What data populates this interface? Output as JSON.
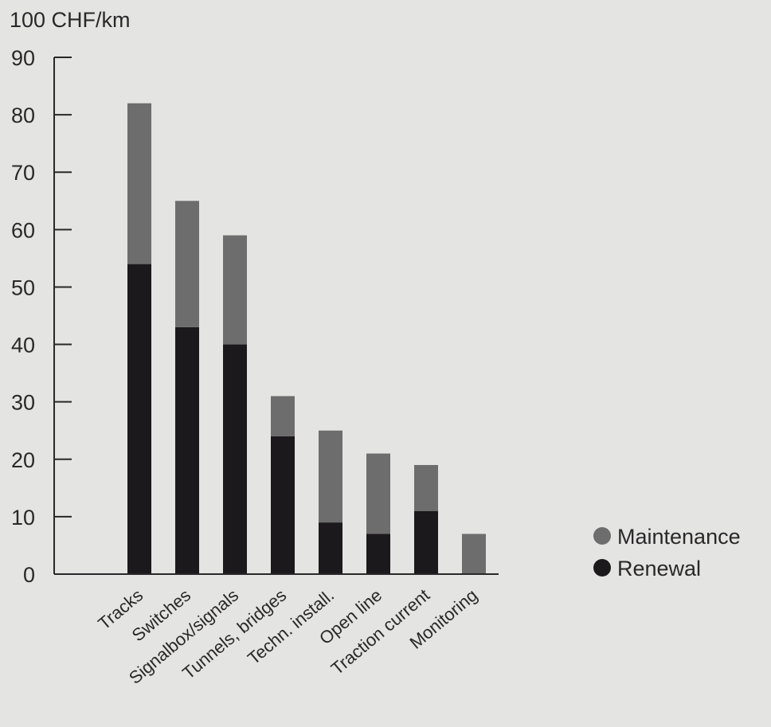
{
  "chart_data": {
    "type": "bar",
    "stacked": true,
    "ylabel": "100 CHF/km",
    "ylim": [
      0,
      90
    ],
    "yticks": [
      0,
      10,
      20,
      30,
      40,
      50,
      60,
      70,
      80,
      90
    ],
    "categories": [
      "Tracks",
      "Switches",
      "Signalbox/signals",
      "Tunnels, bridges",
      "Techn. install.",
      "Open line",
      "Traction current",
      "Monitoring"
    ],
    "series": [
      {
        "name": "Renewal",
        "color": "#1c191c",
        "values": [
          54,
          43,
          40,
          24,
          9,
          7,
          11,
          0
        ]
      },
      {
        "name": "Maintenance",
        "color": "#6e6d6d",
        "values": [
          28,
          22,
          19,
          7,
          16,
          14,
          8,
          7
        ]
      }
    ],
    "legend": [
      {
        "label": "Maintenance",
        "color": "#6e6d6d"
      },
      {
        "label": "Renewal",
        "color": "#1c191c"
      }
    ],
    "legend_position": "right",
    "grid": false
  }
}
